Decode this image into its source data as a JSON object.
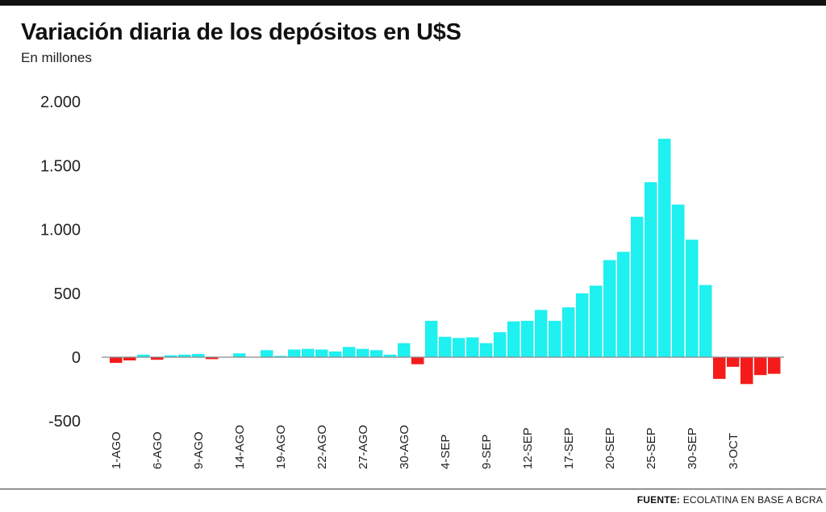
{
  "header": {
    "title": "Variación diaria de los depósitos en U$S",
    "subtitle": "En millones"
  },
  "footer": {
    "source_label": "FUENTE:",
    "source_text": "ECOLATINA EN BASE A BCRA"
  },
  "colors": {
    "positive": "#1ff0f0",
    "negative": "#f51b1b",
    "axis": "#888888"
  },
  "chart_data": {
    "type": "bar",
    "title": "Variación diaria de los depósitos en U$S",
    "ylabel": "En millones",
    "ylim": [
      -500,
      2000
    ],
    "yticks": [
      {
        "value": 2000,
        "label": "2.000"
      },
      {
        "value": 1500,
        "label": "1.500"
      },
      {
        "value": 1000,
        "label": "1.000"
      },
      {
        "value": 500,
        "label": "500"
      },
      {
        "value": 0,
        "label": "0"
      },
      {
        "value": -500,
        "label": "-500"
      }
    ],
    "xtick_labels": [
      {
        "index": 0,
        "label": "1-AGO"
      },
      {
        "index": 3,
        "label": "6-AGO"
      },
      {
        "index": 6,
        "label": "9-AGO"
      },
      {
        "index": 9,
        "label": "14-AGO"
      },
      {
        "index": 12,
        "label": "19-AGO"
      },
      {
        "index": 15,
        "label": "22-AGO"
      },
      {
        "index": 18,
        "label": "27-AGO"
      },
      {
        "index": 21,
        "label": "30-AGO"
      },
      {
        "index": 24,
        "label": "4-SEP"
      },
      {
        "index": 27,
        "label": "9-SEP"
      },
      {
        "index": 30,
        "label": "12-SEP"
      },
      {
        "index": 33,
        "label": "17-SEP"
      },
      {
        "index": 36,
        "label": "20-SEP"
      },
      {
        "index": 39,
        "label": "25-SEP"
      },
      {
        "index": 42,
        "label": "30-SEP"
      },
      {
        "index": 45,
        "label": "3-OCT"
      }
    ],
    "grid": false,
    "values": [
      -45,
      -25,
      20,
      -20,
      15,
      20,
      25,
      -15,
      0,
      30,
      0,
      55,
      10,
      60,
      65,
      60,
      45,
      80,
      65,
      55,
      20,
      110,
      -55,
      285,
      160,
      150,
      155,
      110,
      195,
      280,
      285,
      370,
      285,
      390,
      500,
      560,
      760,
      825,
      1100,
      1370,
      1710,
      1195,
      920,
      565,
      -170,
      -75,
      -210,
      -140,
      -130
    ]
  }
}
